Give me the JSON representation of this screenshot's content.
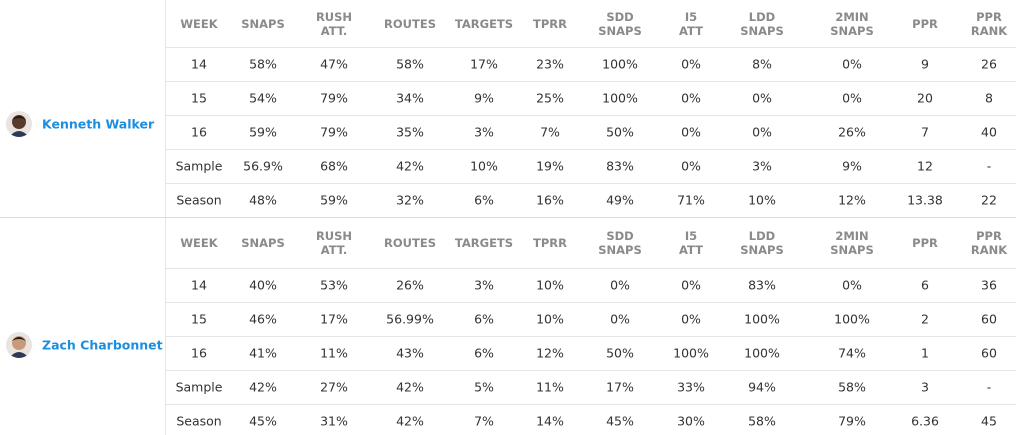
{
  "players": [
    {
      "name": "Kenneth Walker",
      "columns": [
        "WEEK",
        "SNAPS",
        "RUSH\nATT.",
        "ROUTES",
        "TARGETS",
        "TPRR",
        "SDD\nSNAPS",
        "I5\nATT",
        "LDD\nSNAPS",
        "2MIN\nSNAPS",
        "PPR",
        "PPR\nRANK"
      ],
      "rows": [
        [
          "14",
          "58%",
          "47%",
          "58%",
          "17%",
          "23%",
          "100%",
          "0%",
          "8%",
          "0%",
          "9",
          "26"
        ],
        [
          "15",
          "54%",
          "79%",
          "34%",
          "9%",
          "25%",
          "100%",
          "0%",
          "0%",
          "0%",
          "20",
          "8"
        ],
        [
          "16",
          "59%",
          "79%",
          "35%",
          "3%",
          "7%",
          "50%",
          "0%",
          "0%",
          "26%",
          "7",
          "40"
        ],
        [
          "Sample",
          "56.9%",
          "68%",
          "42%",
          "10%",
          "19%",
          "83%",
          "0%",
          "3%",
          "9%",
          "12",
          "-"
        ],
        [
          "Season",
          "48%",
          "59%",
          "32%",
          "6%",
          "16%",
          "49%",
          "71%",
          "10%",
          "12%",
          "13.38",
          "22"
        ]
      ]
    },
    {
      "name": "Zach Charbonnet",
      "columns": [
        "WEEK",
        "SNAPS",
        "RUSH\nATT.",
        "ROUTES",
        "TARGETS",
        "TPRR",
        "SDD\nSNAPS",
        "I5\nATT",
        "LDD\nSNAPS",
        "2MIN\nSNAPS",
        "PPR",
        "PPR\nRANK"
      ],
      "rows": [
        [
          "14",
          "40%",
          "53%",
          "26%",
          "3%",
          "10%",
          "0%",
          "0%",
          "83%",
          "0%",
          "6",
          "36"
        ],
        [
          "15",
          "46%",
          "17%",
          "56.99%",
          "6%",
          "10%",
          "0%",
          "0%",
          "100%",
          "100%",
          "2",
          "60"
        ],
        [
          "16",
          "41%",
          "11%",
          "43%",
          "6%",
          "12%",
          "50%",
          "100%",
          "100%",
          "74%",
          "1",
          "60"
        ],
        [
          "Sample",
          "42%",
          "27%",
          "42%",
          "5%",
          "11%",
          "17%",
          "33%",
          "94%",
          "58%",
          "3",
          "-"
        ],
        [
          "Season",
          "45%",
          "31%",
          "42%",
          "7%",
          "14%",
          "45%",
          "30%",
          "58%",
          "79%",
          "6.36",
          "45"
        ]
      ]
    }
  ]
}
